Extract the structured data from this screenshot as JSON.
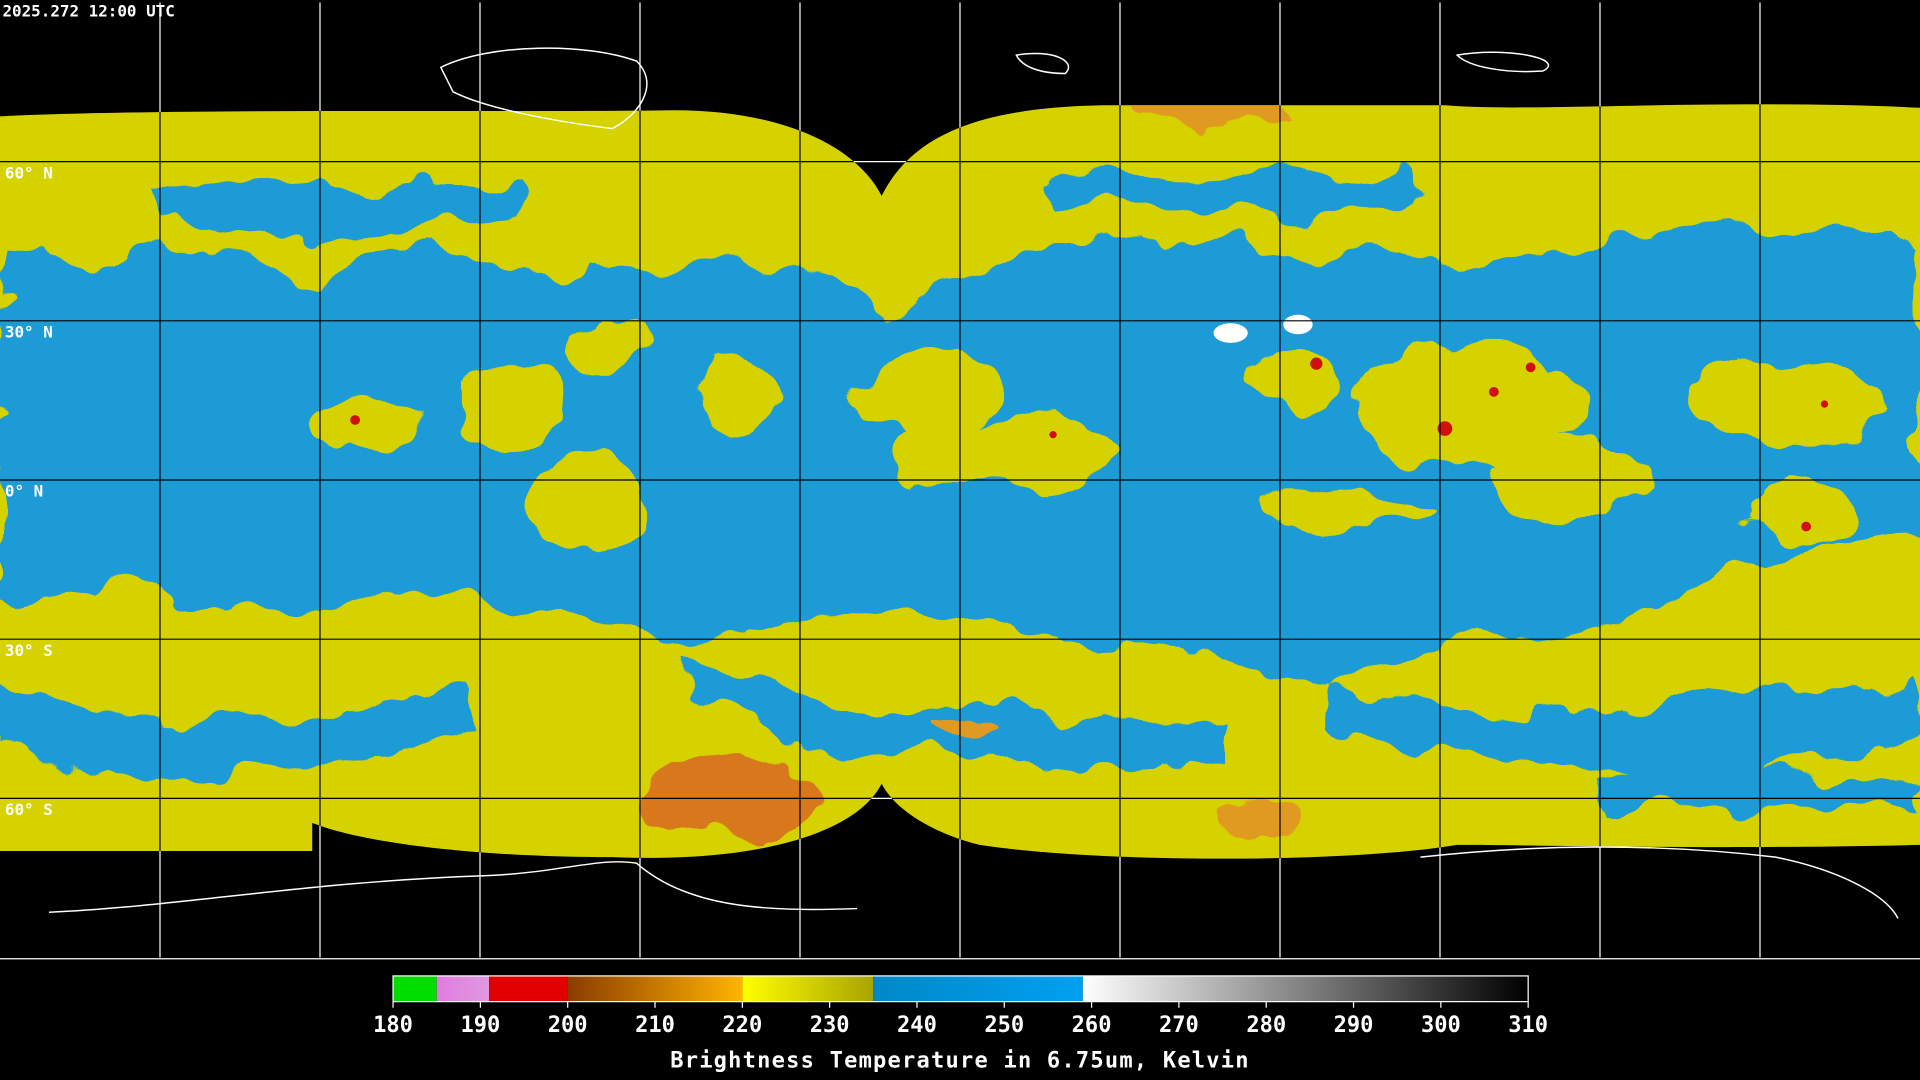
{
  "chart_data": {
    "type": "map",
    "title": "2025.272 12:00 UTC",
    "xlim": [
      -180,
      180
    ],
    "ylim": [
      -90,
      90
    ],
    "xticks": [
      -150,
      -120,
      -90,
      -60,
      -30,
      0,
      30,
      60,
      90,
      120,
      150
    ],
    "yticks": [
      {
        "value": 60,
        "label": "60° N"
      },
      {
        "value": 30,
        "label": "30° N"
      },
      {
        "value": 0,
        "label": "0° N"
      },
      {
        "value": -30,
        "label": "30° S"
      },
      {
        "value": -60,
        "label": "60° S"
      }
    ],
    "colorbar": {
      "lim": [
        180,
        310
      ],
      "ticks": [
        180,
        190,
        200,
        210,
        220,
        230,
        240,
        250,
        260,
        270,
        280,
        290,
        300,
        310
      ],
      "label": "Brightness Temperature in 6.75um, Kelvin",
      "segments": [
        {
          "from": 180,
          "to": 185,
          "colors": [
            "#00dd00",
            "#00dd00"
          ]
        },
        {
          "from": 185,
          "to": 191,
          "colors": [
            "#e07ce0",
            "#e098e0"
          ]
        },
        {
          "from": 191,
          "to": 200,
          "colors": [
            "#e00000",
            "#e00000"
          ]
        },
        {
          "from": 200,
          "to": 220,
          "colors": [
            "#8a3c00",
            "#ffb400"
          ]
        },
        {
          "from": 220,
          "to": 235,
          "colors": [
            "#ffff00",
            "#a8a400"
          ]
        },
        {
          "from": 235,
          "to": 259,
          "colors": [
            "#0088c8",
            "#00a0f0"
          ]
        },
        {
          "from": 259,
          "to": 310,
          "colors": [
            "#ffffff",
            "#000000"
          ]
        }
      ]
    }
  }
}
